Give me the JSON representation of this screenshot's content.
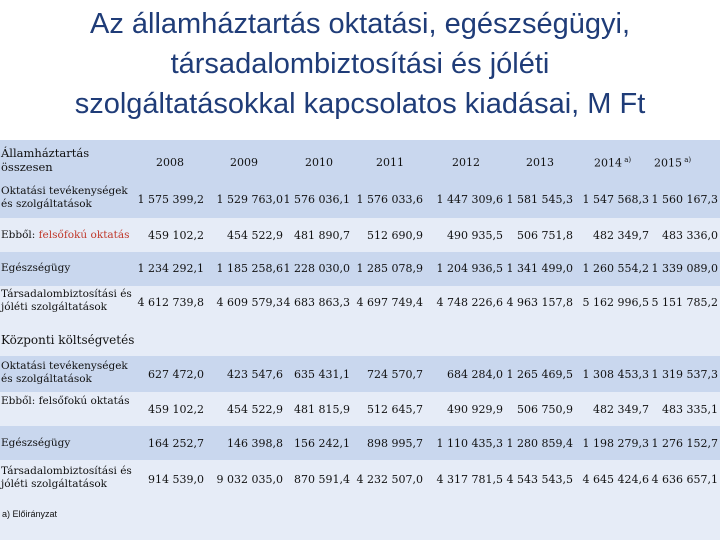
{
  "title": {
    "line1": "Az államháztartás oktatási, egészségügyi,",
    "line2": "társadalombiztosítási és  jóléti",
    "line3": "szolgáltatásokkal kapcsolatos kiadásai, M Ft"
  },
  "table": {
    "header_label": "Államháztartás összesen",
    "years": [
      "2008",
      "2009",
      "2010",
      "2011",
      "2012",
      "2013",
      "2014 a)",
      "2015 a)"
    ],
    "section1": [
      {
        "label": "Oktatási tevékenységek és szolgáltatások",
        "values": [
          "1 575 399,2",
          "1 529 763,0",
          "1 576 036,1",
          "1 576 033,6",
          "1 447 309,6",
          "1 581 545,3",
          "1 547 568,3",
          "1 560 167,3"
        ]
      },
      {
        "label_prefix": "Ebből: ",
        "label_highlight": "felsőfokú oktatás",
        "values": [
          "459 102,2",
          "454 522,9",
          "481 890,7",
          "512 690,9",
          "490 935,5",
          "506 751,8",
          "482 349,7",
          "483 336,0"
        ]
      },
      {
        "label": "Egészségügy",
        "values": [
          "1 234 292,1",
          "1 185 258,6",
          "1 228 030,0",
          "1 285 078,9",
          "1 204 936,5",
          "1 341 499,0",
          "1 260 554,2",
          "1 339 089,0"
        ]
      },
      {
        "label": "Társadalombiztosítási és jóléti szolgáltatások",
        "values": [
          "4 612 739,8",
          "4 609 579,3",
          "4 683 863,3",
          "4 697 749,4",
          "4 748 226,6",
          "4 963 157,8",
          "5 162 996,5",
          "5 151 785,2"
        ]
      }
    ],
    "section2_title": "Központi költségvetés",
    "section2": [
      {
        "label": "Oktatási tevékenységek és szolgáltatások",
        "values": [
          "627 472,0",
          "423 547,6",
          "635 431,1",
          "724 570,7",
          "684 284,0",
          "1 265 469,5",
          "1 308 453,3",
          "1 319 537,3"
        ]
      },
      {
        "label": "Ebből: felsőfokú oktatás",
        "values": [
          "459 102,2",
          "454 522,9",
          "481 815,9",
          "512 645,7",
          "490 929,9",
          "506 750,9",
          "482 349,7",
          "483 335,1"
        ]
      },
      {
        "label": "Egészségügy",
        "values": [
          "164 252,7",
          "146 398,8",
          "156 242,1",
          "898 995,7",
          "1 110 435,3",
          "1 280 859,4",
          "1 198 279,3",
          "1 276 152,7"
        ]
      },
      {
        "label": "Társadalombiztosítási és jóléti szolgáltatások",
        "values": [
          "914 539,0",
          "9 032 035,0",
          "870 591,4",
          "4 232 507,0",
          "4 317 781,5",
          "4 543 543,5",
          "4 645 424,6",
          "4 636 657,1"
        ]
      }
    ]
  },
  "footnote": "a) Előirányzat",
  "colors": {
    "title": "#1f3c78",
    "band_dark": "#c9d7ee",
    "band_light": "#e6ecf7",
    "highlight": "#c0392b"
  }
}
